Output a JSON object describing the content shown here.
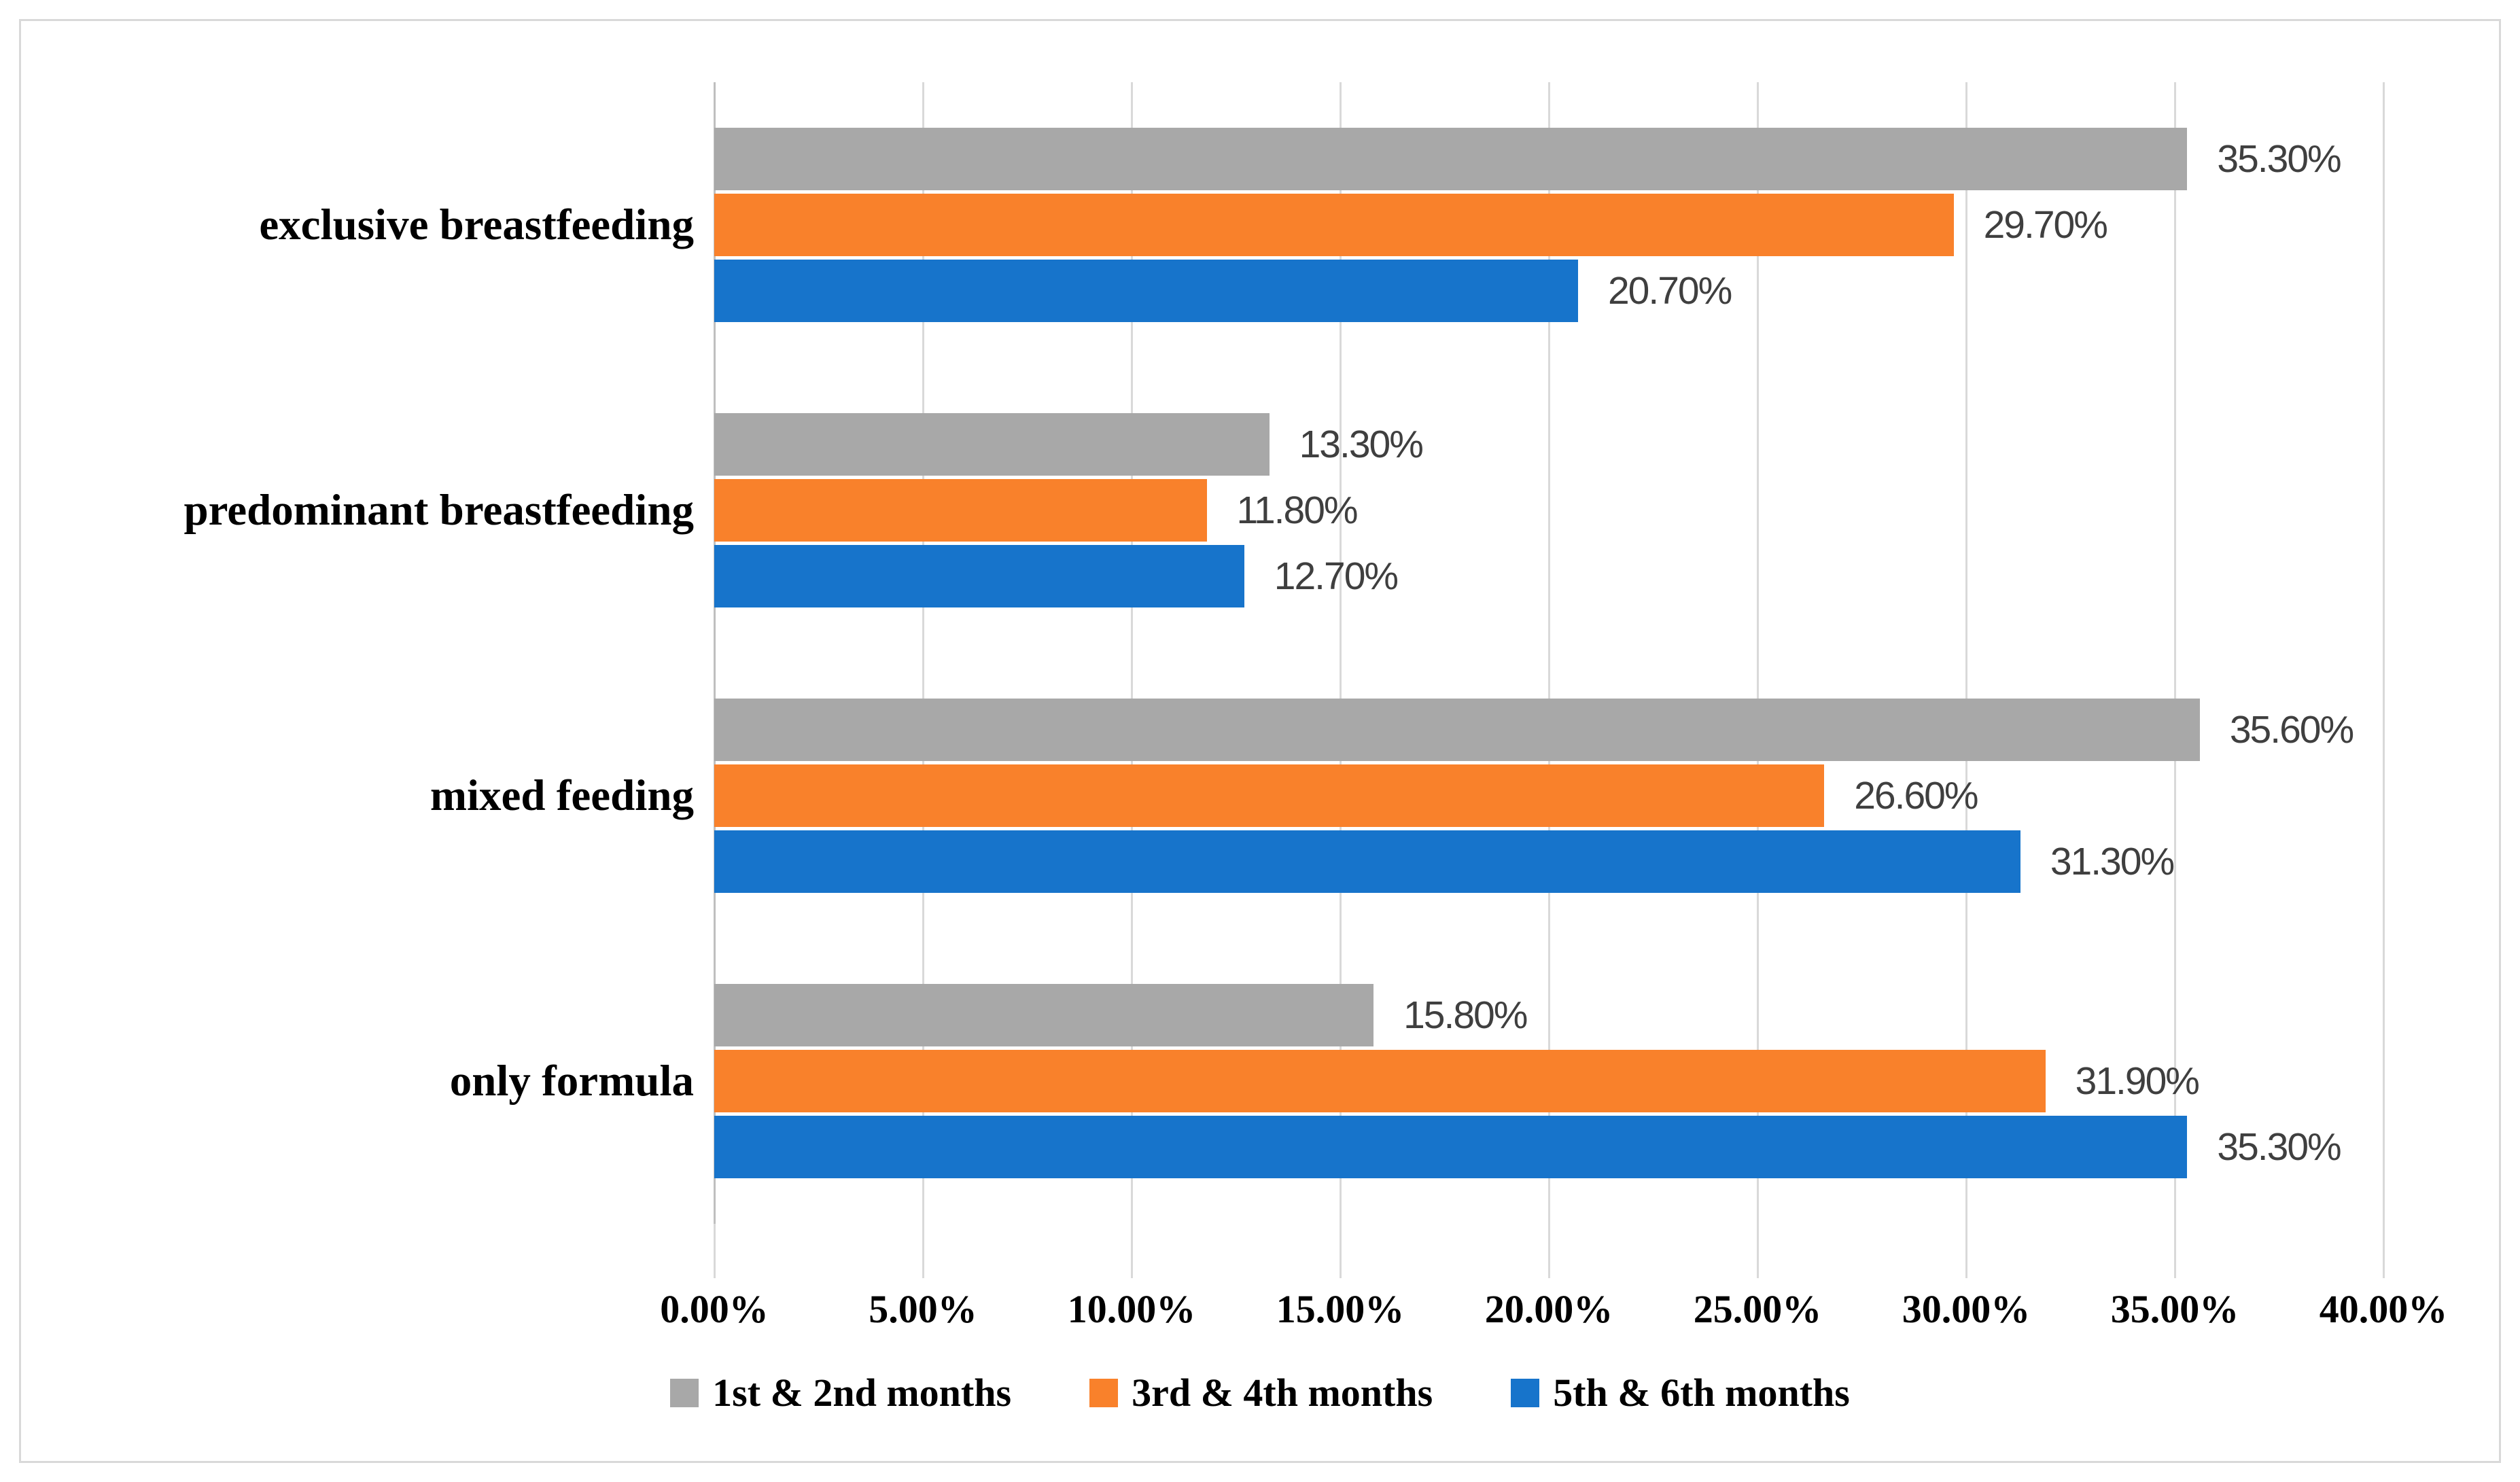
{
  "chart_data": {
    "type": "bar",
    "orientation": "horizontal",
    "title": "",
    "categories": [
      "exclusive breastfeeding",
      "predominant breastfeeding",
      "mixed feeding",
      "only formula"
    ],
    "series": [
      {
        "name": "1st & 2nd months",
        "color": "#A8A8A8",
        "values": [
          35.3,
          13.3,
          35.6,
          15.8
        ],
        "data_labels": [
          "35.30%",
          "13.30%",
          "35.60%",
          "15.80%"
        ]
      },
      {
        "name": "3rd & 4th months",
        "color": "#F9812B",
        "values": [
          29.7,
          11.8,
          26.6,
          31.9
        ],
        "data_labels": [
          "29.70%",
          "11.80%",
          "26.60%",
          "31.90%"
        ]
      },
      {
        "name": "5th & 6th months",
        "color": "#1774CB",
        "values": [
          20.7,
          12.7,
          31.3,
          35.3
        ],
        "data_labels": [
          "20.70%",
          "12.70%",
          "31.30%",
          "35.30%"
        ]
      }
    ],
    "x_axis": {
      "min": 0,
      "max": 40,
      "step": 5,
      "tick_labels": [
        "0.00%",
        "5.00%",
        "10.00%",
        "15.00%",
        "20.00%",
        "25.00%",
        "30.00%",
        "35.00%",
        "40.00%"
      ]
    },
    "grid": true,
    "legend_position": "bottom",
    "styles": {
      "gridline_color": "#D9D9D9",
      "axis_line_color": "#BFBFBF",
      "frame_border_color": "#D9D9D9",
      "data_label_color": "#3F3F3F",
      "text_color": "#000000",
      "background_color": "#FFFFFF"
    }
  }
}
